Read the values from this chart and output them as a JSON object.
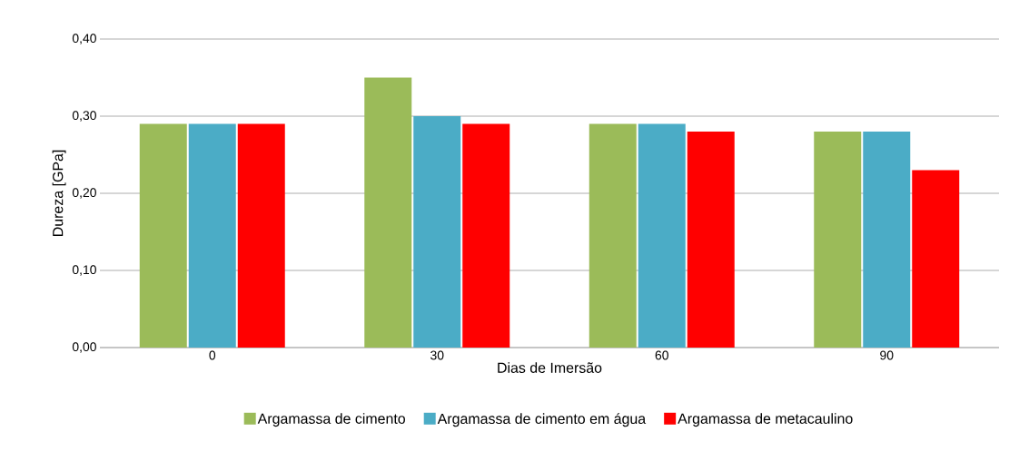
{
  "chart_data": {
    "type": "bar",
    "xlabel": "Dias de Imersão",
    "ylabel": "Dureza [GPa]",
    "categories": [
      "0",
      "30",
      "60",
      "90"
    ],
    "series": [
      {
        "name": "Argamassa de cimento",
        "color": "#9bbb59",
        "values": [
          0.29,
          0.35,
          0.29,
          0.28
        ]
      },
      {
        "name": "Argamassa de cimento em água",
        "color": "#4bacc6",
        "values": [
          0.29,
          0.3,
          0.29,
          0.28
        ]
      },
      {
        "name": "Argamassa de metacaulino",
        "color": "#ff0000",
        "values": [
          0.29,
          0.29,
          0.28,
          0.23
        ]
      }
    ],
    "ylim": [
      0,
      0.4
    ],
    "yticks": [
      {
        "value": 0,
        "label": "0,00"
      },
      {
        "value": 0.1,
        "label": "0,10"
      },
      {
        "value": 0.2,
        "label": "0,20"
      },
      {
        "value": 0.3,
        "label": "0,30"
      },
      {
        "value": 0.4,
        "label": "0,40"
      }
    ],
    "grid": "y",
    "legend": "bottom"
  }
}
